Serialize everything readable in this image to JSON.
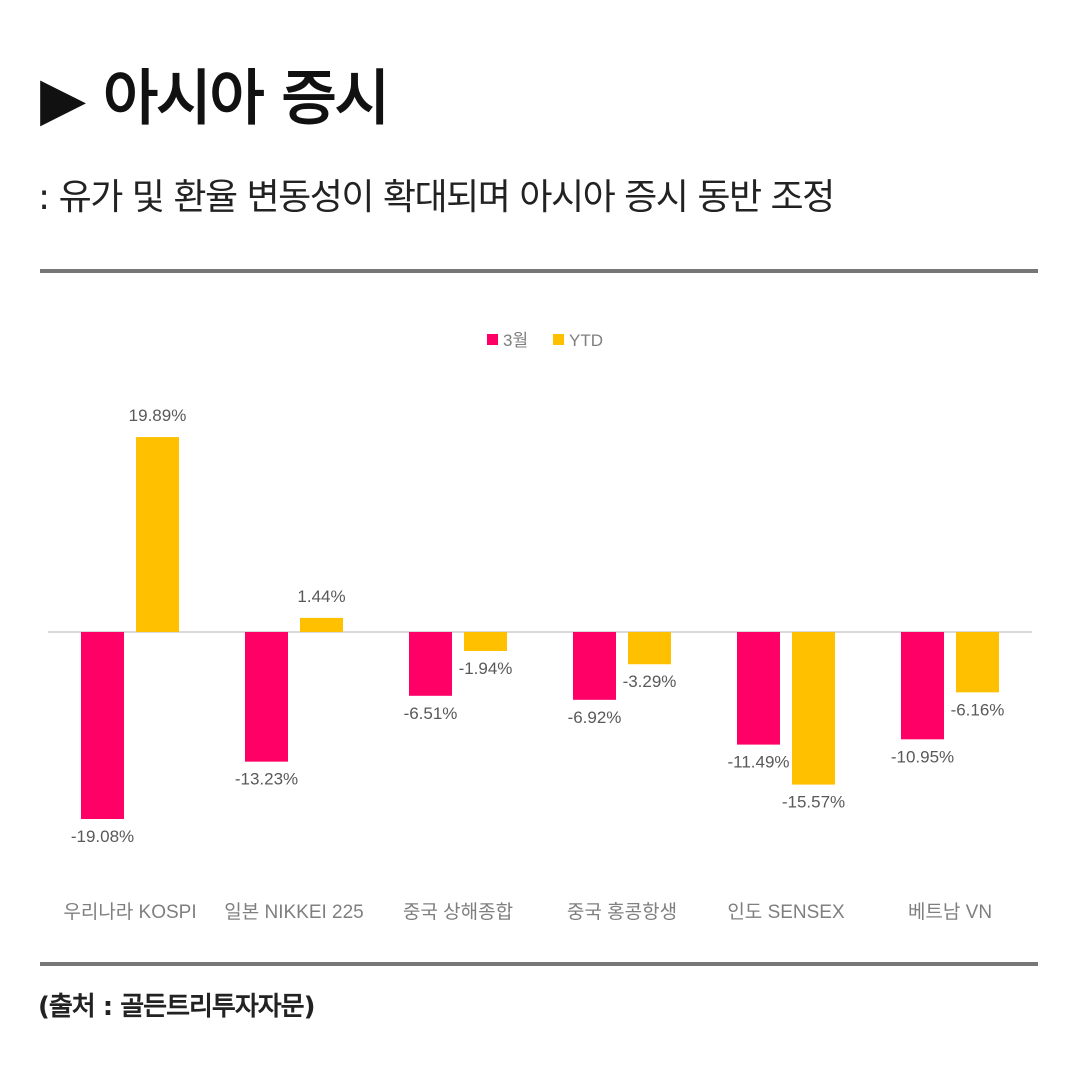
{
  "header": {
    "title": "▶ 아시아 증시",
    "subtitle": ": 유가 및 환율 변동성이 확대되며 아시아 증시 동반 조정"
  },
  "footer": {
    "source": "(출처 : 골든트리투자자문)"
  },
  "chart_data": {
    "type": "bar",
    "title": "",
    "categories": [
      "우리나라 KOSPI",
      "일본 NIKKEI 225",
      "중국 상해종합",
      "중국 홍콩항생",
      "인도 SENSEX",
      "베트남 VN"
    ],
    "series": [
      {
        "name": "3월",
        "color": "#FF0066",
        "values": [
          -19.08,
          -13.23,
          -6.51,
          -6.92,
          -11.49,
          -10.95
        ],
        "labels": [
          "-19.08%",
          "-13.23%",
          "-6.51%",
          "-6.92%",
          "-11.49%",
          "-10.95%"
        ]
      },
      {
        "name": "YTD",
        "color": "#FFC000",
        "values": [
          19.89,
          1.44,
          -1.94,
          -3.29,
          -15.57,
          -6.16
        ],
        "labels": [
          "19.89%",
          "1.44%",
          "-1.94%",
          "-3.29%",
          "-15.57%",
          "-6.16%"
        ]
      }
    ],
    "legend": "top-center",
    "grid": false,
    "ylim": [
      -20,
      20
    ]
  }
}
